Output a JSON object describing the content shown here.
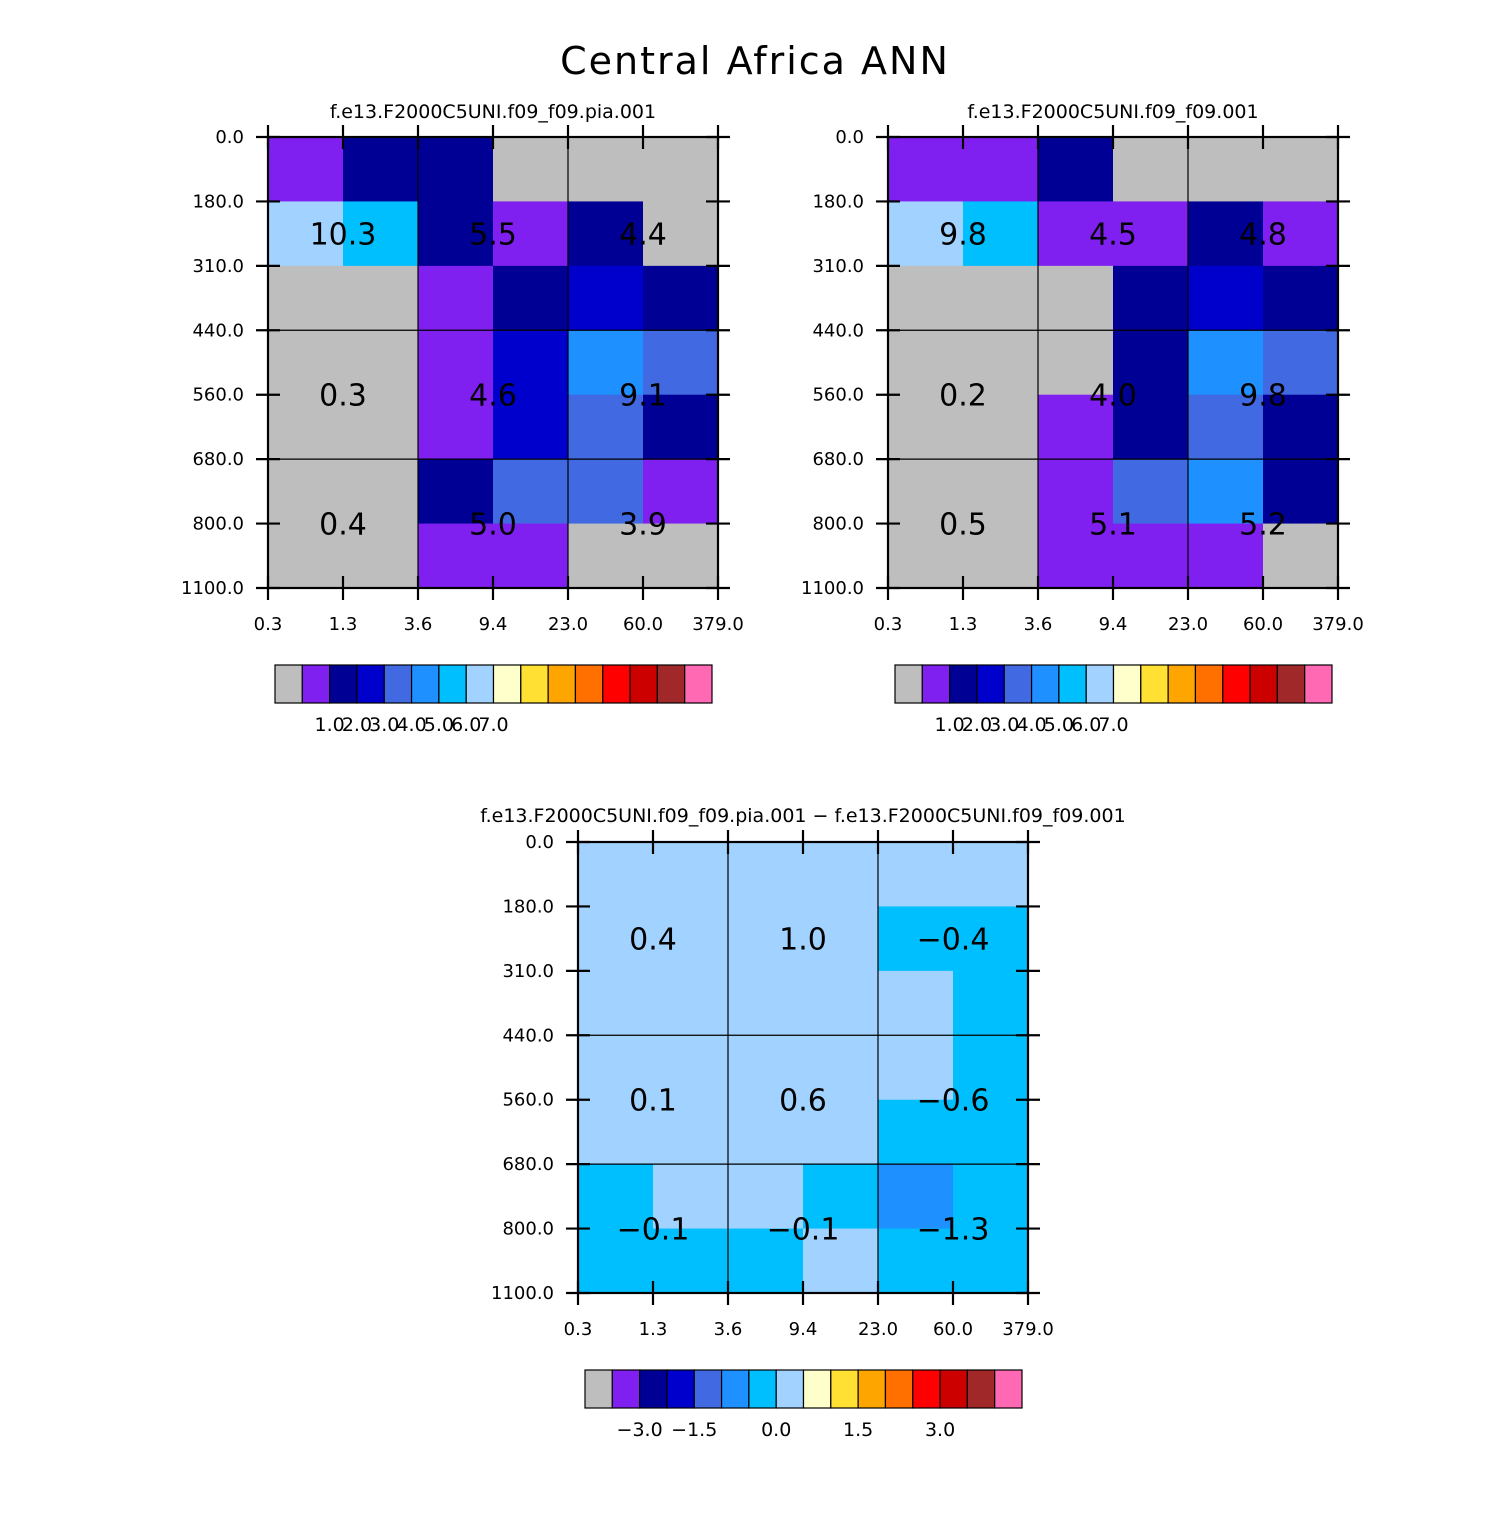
{
  "title": "Central Africa ANN",
  "chart_data": [
    {
      "type": "heatmap",
      "title": "f.e13.F2000C5UNI.f09_f09.pia.001",
      "xlabel": "",
      "ylabel": "",
      "x_ticks": [
        "0.3",
        "1.3",
        "3.6",
        "9.4",
        "23.0",
        "60.0",
        "379.0"
      ],
      "y_ticks": [
        "0.0",
        "180.0",
        "310.0",
        "440.0",
        "560.0",
        "680.0",
        "800.0",
        "1100.0"
      ],
      "bin_colors": [
        [
          1,
          2,
          2,
          0,
          0,
          0
        ],
        [
          7,
          6,
          2,
          1,
          2,
          0
        ],
        [
          0,
          0,
          1,
          2,
          3,
          2
        ],
        [
          0,
          0,
          1,
          3,
          5,
          4
        ],
        [
          0,
          0,
          1,
          3,
          4,
          2
        ],
        [
          0,
          0,
          2,
          4,
          4,
          1
        ],
        [
          0,
          0,
          1,
          1,
          0,
          0
        ]
      ],
      "region_totals": [
        [
          "10.3",
          "5.5",
          "4.4"
        ],
        [
          "0.3",
          "4.6",
          "9.1"
        ],
        [
          "0.4",
          "5.0",
          "3.9"
        ]
      ],
      "colorbar": {
        "labels": [
          "1.0",
          "2.0",
          "3.0",
          "4.0",
          "5.0",
          "6.0",
          "7.0"
        ],
        "label_boxes": [
          2,
          3,
          4,
          5,
          6,
          7,
          8
        ]
      }
    },
    {
      "type": "heatmap",
      "title": "f.e13.F2000C5UNI.f09_f09.001",
      "xlabel": "",
      "ylabel": "",
      "x_ticks": [
        "0.3",
        "1.3",
        "3.6",
        "9.4",
        "23.0",
        "60.0",
        "379.0"
      ],
      "y_ticks": [
        "0.0",
        "180.0",
        "310.0",
        "440.0",
        "560.0",
        "680.0",
        "800.0",
        "1100.0"
      ],
      "bin_colors": [
        [
          1,
          1,
          2,
          0,
          0,
          0
        ],
        [
          7,
          6,
          1,
          1,
          2,
          1
        ],
        [
          0,
          0,
          0,
          2,
          3,
          2
        ],
        [
          0,
          0,
          0,
          2,
          5,
          4
        ],
        [
          0,
          0,
          1,
          2,
          4,
          2
        ],
        [
          0,
          0,
          1,
          4,
          5,
          2
        ],
        [
          0,
          0,
          1,
          1,
          1,
          0
        ]
      ],
      "region_totals": [
        [
          "9.8",
          "4.5",
          "4.8"
        ],
        [
          "0.2",
          "4.0",
          "9.8"
        ],
        [
          "0.5",
          "5.1",
          "5.2"
        ]
      ],
      "colorbar": {
        "labels": [
          "1.0",
          "2.0",
          "3.0",
          "4.0",
          "5.0",
          "6.0",
          "7.0"
        ],
        "label_boxes": [
          2,
          3,
          4,
          5,
          6,
          7,
          8
        ]
      }
    },
    {
      "type": "heatmap",
      "title": "f.e13.F2000C5UNI.f09_f09.pia.001 − f.e13.F2000C5UNI.f09_f09.001",
      "xlabel": "",
      "ylabel": "",
      "x_ticks": [
        "0.3",
        "1.3",
        "3.6",
        "9.4",
        "23.0",
        "60.0",
        "379.0"
      ],
      "y_ticks": [
        "0.0",
        "180.0",
        "310.0",
        "440.0",
        "560.0",
        "680.0",
        "800.0",
        "1100.0"
      ],
      "bin_colors": [
        [
          7,
          7,
          7,
          7,
          7,
          7
        ],
        [
          7,
          7,
          7,
          7,
          6,
          6
        ],
        [
          7,
          7,
          7,
          7,
          7,
          6
        ],
        [
          7,
          7,
          7,
          7,
          7,
          6
        ],
        [
          7,
          7,
          7,
          7,
          6,
          6
        ],
        [
          6,
          7,
          7,
          6,
          5,
          6
        ],
        [
          6,
          6,
          6,
          7,
          6,
          6
        ]
      ],
      "region_totals": [
        [
          "0.4",
          "1.0",
          "−0.4"
        ],
        [
          "0.1",
          "0.6",
          "−0.6"
        ],
        [
          "−0.1",
          "−0.1",
          "−1.3"
        ]
      ],
      "colorbar": {
        "labels": [
          "−3.0",
          "−1.5",
          "0.0",
          "1.5",
          "3.0"
        ],
        "label_boxes": [
          2,
          4,
          7,
          10,
          13
        ]
      }
    }
  ],
  "colormap": [
    "#bebebe",
    "#8020f0",
    "#000095",
    "#0000cd",
    "#4169e1",
    "#1e90ff",
    "#00bfff",
    "#a2d2ff",
    "#ffffcc",
    "#ffe033",
    "#ffa500",
    "#ff7000",
    "#ff0000",
    "#cd0000",
    "#a02828",
    "#ff69b4"
  ]
}
